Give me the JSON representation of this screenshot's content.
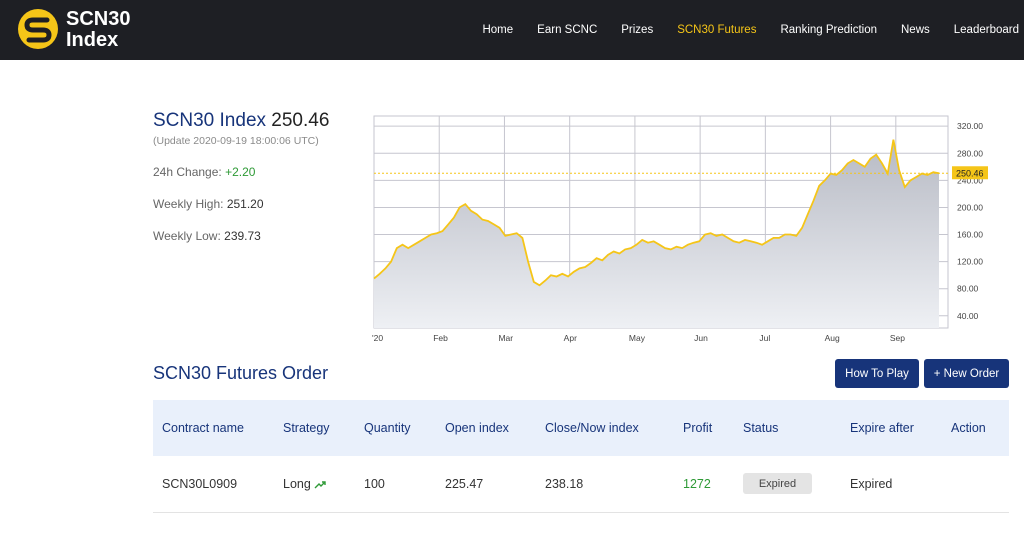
{
  "brand": {
    "line1": "SCN30",
    "line2": "Index"
  },
  "nav": {
    "items": [
      "Home",
      "Earn SCNC",
      "Prizes",
      "SCN30 Futures",
      "Ranking Prediction",
      "News",
      "Leaderboard"
    ],
    "active": 3
  },
  "index": {
    "title": "SCN30 Index",
    "value": "250.46",
    "update": "(Update 2020-09-19 18:00:06 UTC)",
    "change_label": "24h Change:",
    "change_value": "+2.20",
    "high_label": "Weekly High:",
    "high_value": "251.20",
    "low_label": "Weekly Low:",
    "low_value": "239.73"
  },
  "chart_data": {
    "type": "area",
    "x_ticks": [
      "'20",
      "Feb",
      "Mar",
      "Apr",
      "May",
      "Jun",
      "Jul",
      "Aug",
      "Sep"
    ],
    "y_ticks": [
      "320.00",
      "280.00",
      "240.00",
      "200.00",
      "160.00",
      "120.00",
      "80.00",
      "40.00"
    ],
    "ylim": [
      22,
      335
    ],
    "current_label": "250.46",
    "current_value": 250.46,
    "series": [
      {
        "values": [
          95,
          102,
          110,
          120,
          140,
          145,
          140,
          145,
          150,
          155,
          160,
          162,
          165,
          175,
          185,
          200,
          205,
          195,
          190,
          182,
          180,
          175,
          170,
          158,
          160,
          162,
          155,
          120,
          90,
          85,
          92,
          100,
          98,
          102,
          98,
          105,
          110,
          112,
          118,
          125,
          122,
          130,
          135,
          132,
          138,
          140,
          145,
          152,
          148,
          150,
          145,
          140,
          138,
          142,
          140,
          145,
          148,
          150,
          160,
          162,
          158,
          160,
          155,
          150,
          148,
          152,
          150,
          148,
          145,
          150,
          155,
          155,
          160,
          160,
          158,
          170,
          190,
          210,
          232,
          240,
          250,
          248,
          255,
          265,
          270,
          265,
          260,
          272,
          278,
          265,
          250,
          300,
          255,
          230,
          240,
          245,
          250,
          248,
          252,
          250.46
        ],
        "x_start": 0.0,
        "x_step": 0.0875
      }
    ],
    "colors": {
      "line": "#f5c518",
      "fill_top": "#b7bac4",
      "fill_bottom": "#eef0f4",
      "grid": "#c6c6cf"
    }
  },
  "futures": {
    "title": "SCN30 Futures Order",
    "how_to_play": "How To Play",
    "new_order": "+ New Order",
    "columns": [
      "Contract name",
      "Strategy",
      "Quantity",
      "Open index",
      "Close/Now index",
      "Profit",
      "Status",
      "Expire after",
      "Action"
    ],
    "rows": [
      {
        "contract": "SCN30L0909",
        "strategy": "Long",
        "strategy_icon": "trend-up-icon",
        "quantity": "100",
        "open": "225.47",
        "close": "238.18",
        "profit": "1272",
        "status": "Expired",
        "expire": "Expired",
        "action": ""
      }
    ]
  }
}
